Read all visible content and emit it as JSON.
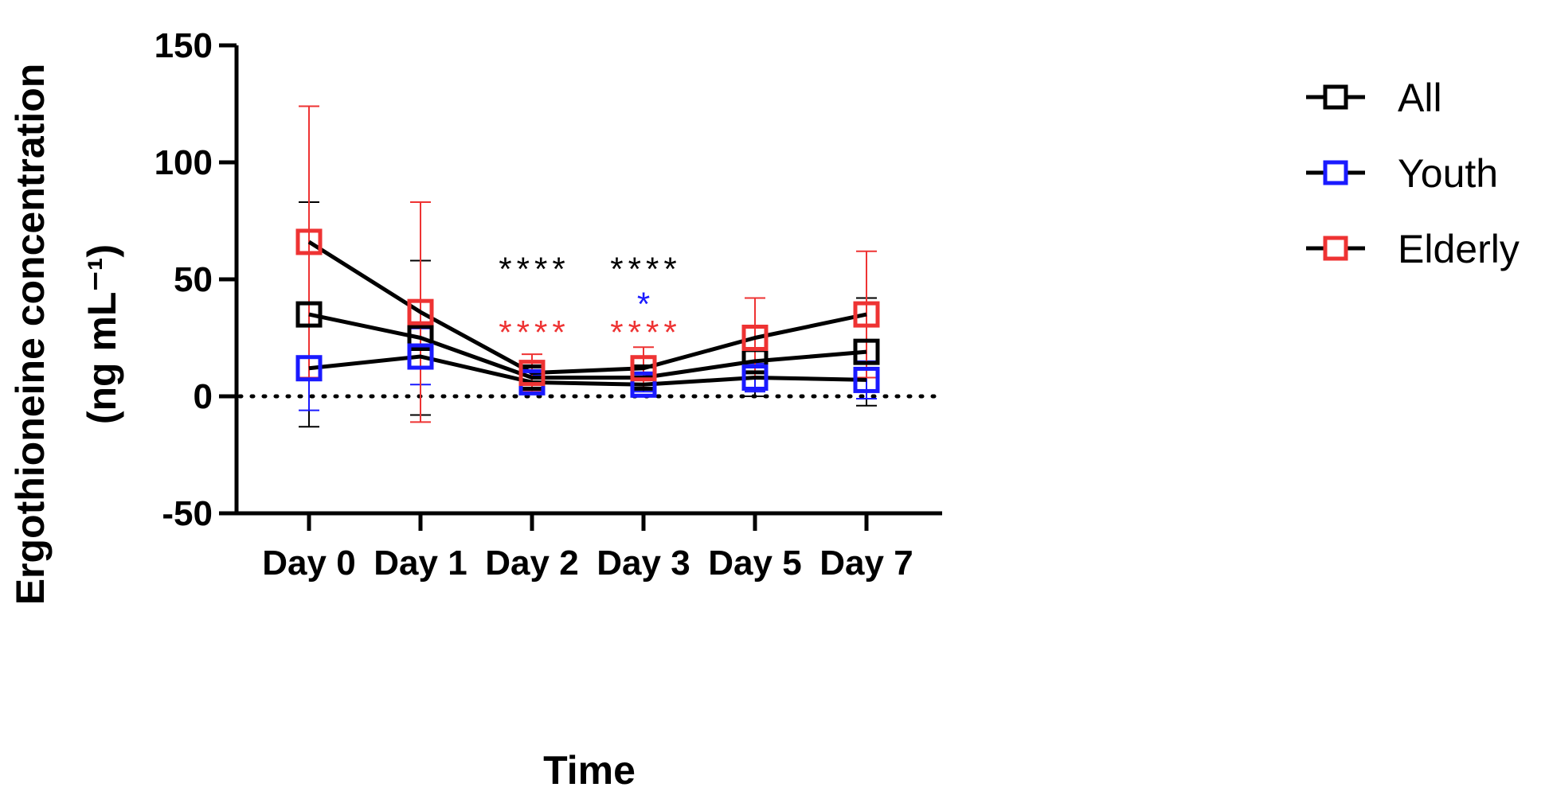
{
  "chart_data": {
    "type": "line",
    "title": "",
    "xlabel": "Time",
    "ylabel_line1": "Ergothioneine concentration",
    "ylabel_line2": "(ng mL⁻¹)",
    "categories": [
      "Day 0",
      "Day 1",
      "Day 2",
      "Day 3",
      "Day 5",
      "Day 7"
    ],
    "ylim": [
      -50,
      150
    ],
    "yticks": [
      -50,
      0,
      50,
      100,
      150
    ],
    "ytick_labels": [
      "-50",
      "0",
      "50",
      "100",
      "150"
    ],
    "reference_line": {
      "y": 0,
      "style": "dotted"
    },
    "legend_position": "right",
    "series": [
      {
        "name": "All",
        "color": "#000000",
        "values": [
          35,
          25,
          8,
          8,
          15,
          19
        ],
        "error": [
          48,
          33,
          5,
          5,
          15,
          23
        ]
      },
      {
        "name": "Youth",
        "color": "#1a1aff",
        "values": [
          12,
          17,
          6,
          5,
          8,
          7
        ],
        "error": [
          18,
          12,
          3,
          3,
          6,
          8
        ]
      },
      {
        "name": "Elderly",
        "color": "#ee3333",
        "values": [
          66,
          36,
          10,
          12,
          25,
          35
        ],
        "error": [
          58,
          47,
          8,
          9,
          17,
          27
        ]
      }
    ],
    "annotations": [
      {
        "text": "****",
        "category": "Day 2",
        "y": 57,
        "color": "#000000"
      },
      {
        "text": "****",
        "category": "Day 2",
        "y": 30,
        "color": "#ee3333"
      },
      {
        "text": "****",
        "category": "Day 3",
        "y": 57,
        "color": "#000000"
      },
      {
        "text": "*",
        "category": "Day 3",
        "y": 42,
        "color": "#1a1aff"
      },
      {
        "text": "****",
        "category": "Day 3",
        "y": 30,
        "color": "#ee3333"
      }
    ]
  }
}
